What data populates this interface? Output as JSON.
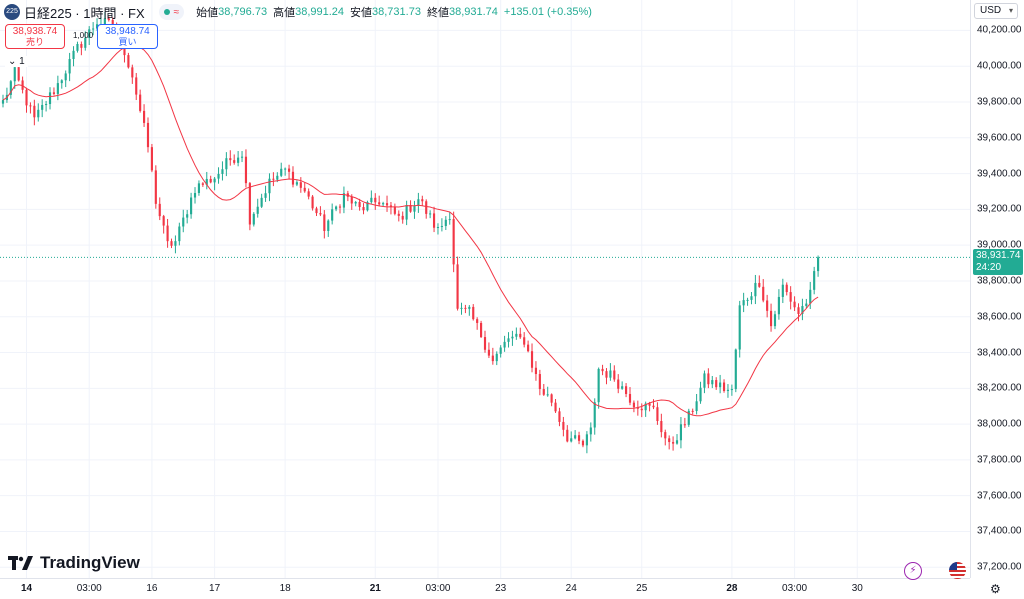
{
  "legend": {
    "symbol_logo": "225",
    "symbol": "日経225 · 1時間 · FX",
    "open_label": "始値",
    "open": "38,796.73",
    "high_label": "高値",
    "high": "38,991.24",
    "low_label": "安値",
    "low": "38,731.73",
    "close_label": "終値",
    "close": "38,931.74",
    "change": "+135.01 (+0.35%)"
  },
  "trade": {
    "sell_price": "38,938.74",
    "sell_label": "売り",
    "buy_price": "38,948.74",
    "buy_label": "買い",
    "quantity": "1,000"
  },
  "collapse_label": "1",
  "currency": "USD",
  "last_price": {
    "value": "38,931.74",
    "countdown": "24:20"
  },
  "brand": "TradingView",
  "colors": {
    "up": "#22ab94",
    "down": "#f23645",
    "ma": "#f23645",
    "last_line": "#22ab94"
  },
  "icons": {
    "flash": "flash-icon",
    "flag": "us-flag-icon",
    "settings": "settings-icon"
  },
  "chart_data": {
    "type": "candlestick",
    "y_axis": {
      "min": 37140,
      "max": 40370,
      "ticks": [
        40200,
        40000,
        39800,
        39600,
        39400,
        39200,
        39000,
        38800,
        38600,
        38400,
        38200,
        38000,
        37800,
        37600,
        37400,
        37200
      ],
      "tick_labels": [
        "40,200.00",
        "40,000.00",
        "39,800.00",
        "39,600.00",
        "39,400.00",
        "39,200.00",
        "39,000.00",
        "38,800.00",
        "38,600.00",
        "38,400.00",
        "38,200.00",
        "38,000.00",
        "37,800.00",
        "37,600.00",
        "37,400.00",
        "37,200.00"
      ]
    },
    "x_axis": {
      "start_bar": 0,
      "end_bar": 246,
      "ticks": [
        {
          "bar": 6,
          "label": "14",
          "bold": true
        },
        {
          "bar": 22,
          "label": "03:00",
          "bold": false
        },
        {
          "bar": 38,
          "label": "16",
          "bold": false
        },
        {
          "bar": 54,
          "label": "17",
          "bold": false
        },
        {
          "bar": 72,
          "label": "18",
          "bold": false
        },
        {
          "bar": 95,
          "label": "21",
          "bold": true
        },
        {
          "bar": 111,
          "label": "03:00",
          "bold": false
        },
        {
          "bar": 127,
          "label": "23",
          "bold": false
        },
        {
          "bar": 145,
          "label": "24",
          "bold": false
        },
        {
          "bar": 163,
          "label": "25",
          "bold": false
        },
        {
          "bar": 186,
          "label": "28",
          "bold": true
        },
        {
          "bar": 202,
          "label": "03:00",
          "bold": false
        },
        {
          "bar": 218,
          "label": "30",
          "bold": false
        }
      ]
    },
    "last_price": 38931.74,
    "anchors": [
      [
        0,
        39800
      ],
      [
        3,
        39960
      ],
      [
        8,
        39700
      ],
      [
        14,
        39900
      ],
      [
        19,
        40100
      ],
      [
        24,
        40250
      ],
      [
        29,
        40220
      ],
      [
        33,
        39950
      ],
      [
        37,
        39550
      ],
      [
        39,
        39250
      ],
      [
        42,
        39000
      ],
      [
        44,
        39020
      ],
      [
        49,
        39320
      ],
      [
        54,
        39380
      ],
      [
        58,
        39480
      ],
      [
        61,
        39520
      ],
      [
        63,
        39150
      ],
      [
        68,
        39350
      ],
      [
        72,
        39420
      ],
      [
        77,
        39300
      ],
      [
        82,
        39100
      ],
      [
        87,
        39280
      ],
      [
        91,
        39200
      ],
      [
        96,
        39250
      ],
      [
        101,
        39150
      ],
      [
        106,
        39260
      ],
      [
        111,
        39080
      ],
      [
        114,
        39180
      ],
      [
        116,
        38630
      ],
      [
        119,
        38620
      ],
      [
        122,
        38500
      ],
      [
        125,
        38350
      ],
      [
        129,
        38480
      ],
      [
        133,
        38470
      ],
      [
        137,
        38200
      ],
      [
        140,
        38130
      ],
      [
        144,
        37930
      ],
      [
        148,
        37880
      ],
      [
        150,
        37960
      ],
      [
        152,
        38310
      ],
      [
        156,
        38260
      ],
      [
        161,
        38120
      ],
      [
        166,
        38080
      ],
      [
        170,
        37870
      ],
      [
        175,
        38040
      ],
      [
        179,
        38250
      ],
      [
        183,
        38210
      ],
      [
        186,
        38180
      ],
      [
        188,
        38650
      ],
      [
        193,
        38800
      ],
      [
        196,
        38550
      ],
      [
        199,
        38770
      ],
      [
        203,
        38620
      ],
      [
        206,
        38720
      ],
      [
        208,
        38930
      ]
    ]
  }
}
